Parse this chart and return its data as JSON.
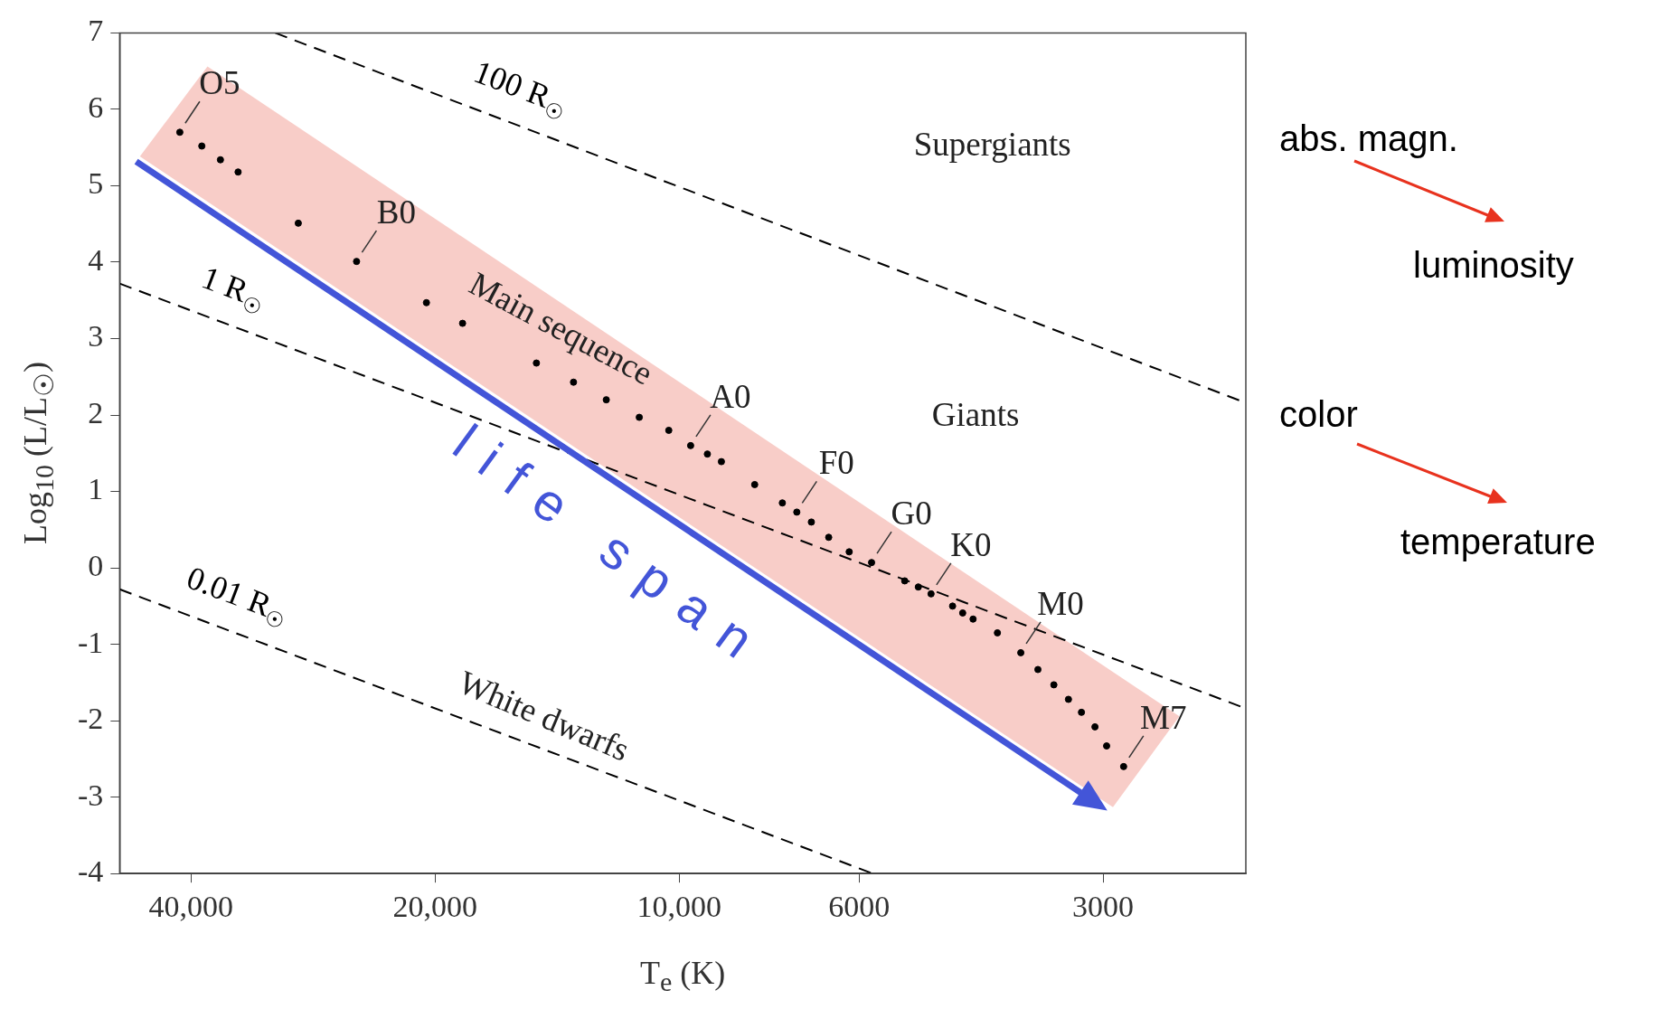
{
  "chart_data": {
    "type": "scatter",
    "xlabel": "T$_{e}$ (K)",
    "ylabel": "Log$_{10}$ (L/L$_{☉}$)",
    "log": "x",
    "xlim": [
      49000,
      2000
    ],
    "xticks": [
      {
        "value": 40000,
        "label": "40,000"
      },
      {
        "value": 20000,
        "label": "20,000"
      },
      {
        "value": 10000,
        "label": "10,000"
      },
      6000,
      3000
    ],
    "ylim": [
      -4,
      7
    ],
    "yticks": [
      -4,
      -3,
      -2,
      -1,
      0,
      1,
      2,
      3,
      4,
      5,
      6,
      7
    ],
    "grid": false,
    "legend": false,
    "marker": "circle",
    "line_style": "dashed",
    "series": [
      {
        "color": "#000000",
        "x": [
          41300,
          38800,
          36800,
          35000,
          29500,
          25000,
          20500,
          18500,
          15000,
          13500,
          12300,
          11200,
          10300,
          9680,
          9230,
          8870,
          8070,
          7460,
          7160,
          6870,
          6540,
          6170,
          5790,
          5270,
          5070,
          4890,
          4600,
          4470,
          4340,
          4050,
          3790,
          3610,
          3450,
          3310,
          3190,
          3070,
          2970,
          2830
        ],
        "values": [
          5.7,
          5.52,
          5.34,
          5.18,
          4.51,
          4.01,
          3.47,
          3.2,
          2.68,
          2.43,
          2.2,
          1.97,
          1.8,
          1.6,
          1.49,
          1.39,
          1.09,
          0.85,
          0.73,
          0.6,
          0.4,
          0.21,
          0.07,
          -0.17,
          -0.25,
          -0.34,
          -0.5,
          -0.59,
          -0.67,
          -0.85,
          -1.11,
          -1.33,
          -1.53,
          -1.72,
          -1.89,
          -2.08,
          -2.33,
          -2.6
        ]
      },
      {
        "name": "100 R$_{☉}$",
        "type": "line",
        "color": "#000000",
        "marker": "none",
        "x": [
          31500,
          2000
        ],
        "values": [
          7,
          2.16
        ]
      },
      {
        "name": "1 R$_{☉}$",
        "type": "line",
        "color": "#000000",
        "marker": "none",
        "x": [
          49000,
          2000
        ],
        "values": [
          3.72,
          -1.84
        ]
      },
      {
        "name": "0.01 R$_{☉}$",
        "type": "line",
        "color": "#000000",
        "marker": "none",
        "x": [
          49000,
          5770
        ],
        "values": [
          -0.28,
          -4
        ]
      }
    ],
    "annotations": [
      {
        "text": "O5",
        "x": 41300,
        "y": 5.7
      },
      {
        "text": "B0",
        "x": 25000,
        "y": 4.01
      },
      {
        "text": "A0",
        "x": 9680,
        "y": 1.6
      },
      {
        "text": "F0",
        "x": 7160,
        "y": 0.73
      },
      {
        "text": "G0",
        "x": 5790,
        "y": 0.07
      },
      {
        "text": "K0",
        "x": 4890,
        "y": -0.34
      },
      {
        "text": "M0",
        "x": 3790,
        "y": -1.11
      },
      {
        "text": "M7",
        "x": 2830,
        "y": -2.6
      },
      "Supergiants",
      "Giants",
      "Main sequence",
      "White dwarfs",
      "life span",
      "abs. magn.",
      "luminosity",
      "color",
      "temperature"
    ]
  }
}
